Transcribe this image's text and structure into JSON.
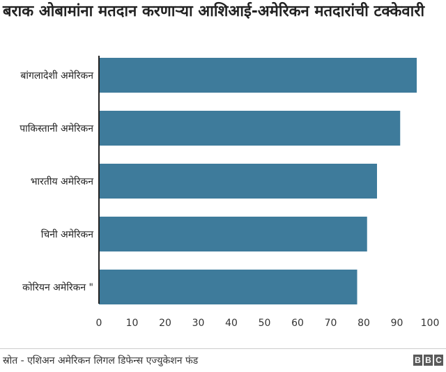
{
  "chart_data": {
    "type": "bar",
    "orientation": "horizontal",
    "title": "बराक ओबामांना मतदान करणाऱ्या आशिआई-अमेरिकन मतदारांची टक्केवारी",
    "categories": [
      "बांगलादेशी अमेरिकन",
      "पाकिस्तानी अमेरिकन",
      "भारतीय अमेरिकन",
      "चिनी अमेरिकन",
      "कोरियन अमेरिकन \""
    ],
    "values": [
      96,
      91,
      84,
      81,
      78
    ],
    "xlim": [
      0,
      100
    ],
    "xticks": [
      0,
      10,
      20,
      30,
      40,
      50,
      60,
      70,
      80,
      90,
      100
    ],
    "xlabel": "",
    "ylabel": "",
    "grid": false,
    "bar_color": "#3e7b9b"
  },
  "footer": {
    "source": "स्रोत - एशिअन अमेरिकन लिगल डिफेन्स एज्युकेशन फंड",
    "logo_letters": [
      "B",
      "B",
      "C"
    ]
  }
}
